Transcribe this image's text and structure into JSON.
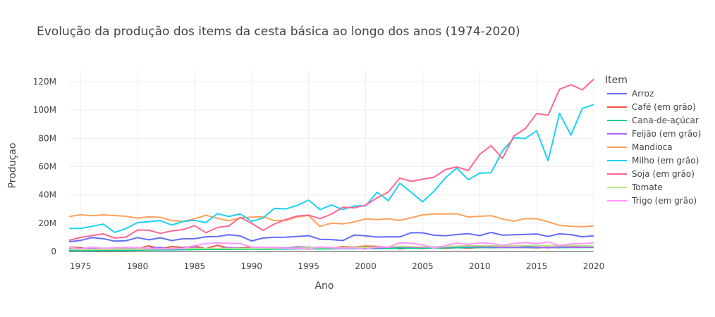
{
  "chart_data": {
    "type": "line",
    "title": "Evolução da produção dos items da cesta básica ao longo dos anos (1974-2020)",
    "xlabel": "Ano",
    "ylabel": "Produçao",
    "xlim": [
      1974,
      2020
    ],
    "ylim": [
      0,
      128000000
    ],
    "x_ticks": [
      1975,
      1980,
      1985,
      1990,
      1995,
      2000,
      2005,
      2010,
      2015,
      2020
    ],
    "y_ticks": [
      0,
      20000000,
      40000000,
      60000000,
      80000000,
      100000000,
      120000000
    ],
    "y_tick_labels": [
      "0",
      "20M",
      "40M",
      "60M",
      "80M",
      "100M",
      "120M"
    ],
    "grid": true,
    "legend_title": "Item",
    "legend_position": "right",
    "x": [
      1974,
      1975,
      1976,
      1977,
      1978,
      1979,
      1980,
      1981,
      1982,
      1983,
      1984,
      1985,
      1986,
      1987,
      1988,
      1989,
      1990,
      1991,
      1992,
      1993,
      1994,
      1995,
      1996,
      1997,
      1998,
      1999,
      2000,
      2001,
      2002,
      2003,
      2004,
      2005,
      2006,
      2007,
      2008,
      2009,
      2010,
      2011,
      2012,
      2013,
      2014,
      2015,
      2016,
      2017,
      2018,
      2019,
      2020
    ],
    "series": [
      {
        "name": "Arroz",
        "color": "#636efa",
        "values": [
          6800000,
          7800000,
          9800000,
          9000000,
          7300000,
          7600000,
          9800000,
          8200000,
          9700000,
          7700000,
          9000000,
          9000000,
          10400000,
          10600000,
          11800000,
          11000000,
          7400000,
          9500000,
          10000000,
          10100000,
          10600000,
          11200000,
          8600000,
          8400000,
          7700000,
          11600000,
          11100000,
          10200000,
          10400000,
          10300000,
          13300000,
          13200000,
          11500000,
          11100000,
          12000000,
          12600000,
          11200000,
          13500000,
          11500000,
          11800000,
          12100000,
          12400000,
          10600000,
          12500000,
          11900000,
          10400000,
          11100000
        ]
      },
      {
        "name": "Café (em grão)",
        "color": "#ef553b",
        "values": [
          3000000,
          2700000,
          1500000,
          1900000,
          2500000,
          2600000,
          2100000,
          4000000,
          1800000,
          3500000,
          2800000,
          3800000,
          2100000,
          4400000,
          2400000,
          2600000,
          2900000,
          3000000,
          2600000,
          2500000,
          2600000,
          1900000,
          2700000,
          2500000,
          3400000,
          3200000,
          3800000,
          3600000,
          2900000,
          1900000,
          2500000,
          2100000,
          2600000,
          2200000,
          2800000,
          2400000,
          2900000,
          2700000,
          3000000,
          2900000,
          2800000,
          2600000,
          3000000,
          2700000,
          3600000,
          3000000,
          3600000
        ]
      },
      {
        "name": "Cana-de-açúcar",
        "color": "#00cc96",
        "values": [
          800000,
          900000,
          700000,
          800000,
          900000,
          800000,
          1000000,
          1100000,
          1200000,
          1200000,
          1300000,
          1400000,
          1500000,
          1500000,
          1500000,
          1600000,
          1600000,
          1600000,
          1700000,
          1700000,
          1800000,
          1800000,
          1900000,
          1900000,
          2000000,
          2000000,
          2100000,
          2100000,
          2200000,
          2300000,
          2300000,
          2400000,
          2500000,
          2600000,
          2700000,
          2800000,
          2900000,
          2800000,
          2800000,
          2900000,
          2900000,
          2900000,
          2900000,
          2800000,
          2800000,
          2800000,
          2900000
        ]
      },
      {
        "name": "Feijão (em grão)",
        "color": "#ab63fa",
        "values": [
          2200000,
          2300000,
          1800000,
          2300000,
          2200000,
          2200000,
          2000000,
          2300000,
          2900000,
          1600000,
          2600000,
          2500000,
          2200000,
          2000000,
          2800000,
          2300000,
          2200000,
          2700000,
          2800000,
          2500000,
          3300000,
          2900000,
          2800000,
          2900000,
          2200000,
          2800000,
          3100000,
          2500000,
          3000000,
          3300000,
          3000000,
          3000000,
          3400000,
          3200000,
          3500000,
          3500000,
          3300000,
          3400000,
          2900000,
          2900000,
          3300000,
          3100000,
          2600000,
          3300000,
          3000000,
          3000000,
          3200000
        ]
      },
      {
        "name": "Mandioca",
        "color": "#ffa15a",
        "values": [
          24700000,
          26000000,
          25300000,
          25900000,
          25400000,
          24900000,
          23500000,
          24500000,
          24100000,
          21800000,
          21300000,
          23100000,
          25600000,
          23500000,
          21700000,
          23700000,
          24300000,
          24500000,
          21900000,
          21900000,
          24500000,
          25400000,
          17700000,
          20000000,
          19500000,
          20900000,
          23000000,
          22600000,
          23100000,
          21900000,
          23900000,
          25900000,
          26600000,
          26500000,
          26700000,
          24400000,
          24900000,
          25300000,
          23000000,
          21400000,
          23300000,
          23100000,
          21000000,
          18500000,
          17800000,
          17500000,
          18200000
        ]
      },
      {
        "name": "Milho (em grão)",
        "color": "#19d3f3",
        "values": [
          16300000,
          16300000,
          17800000,
          19300000,
          13500000,
          16300000,
          20400000,
          21100000,
          21800000,
          18700000,
          21200000,
          22000000,
          20500000,
          26800000,
          24700000,
          26600000,
          21300000,
          23700000,
          30500000,
          30100000,
          32500000,
          36300000,
          29600000,
          32900000,
          29600000,
          32200000,
          32300000,
          41900000,
          35900000,
          48300000,
          41800000,
          35100000,
          42700000,
          52100000,
          59000000,
          50700000,
          55400000,
          55700000,
          71100000,
          80300000,
          79900000,
          85300000,
          64200000,
          97700000,
          82300000,
          101100000,
          103900000
        ]
      },
      {
        "name": "Soja (em grão)",
        "color": "#ff6692",
        "values": [
          7900000,
          9900000,
          11200000,
          12500000,
          9500000,
          10200000,
          15200000,
          15000000,
          12800000,
          14600000,
          15500000,
          18300000,
          13300000,
          17000000,
          18000000,
          24100000,
          19900000,
          14900000,
          19400000,
          22600000,
          25100000,
          25700000,
          23200000,
          26400000,
          31300000,
          30900000,
          32800000,
          37900000,
          42100000,
          51900000,
          49600000,
          51100000,
          52500000,
          57900000,
          59800000,
          57300000,
          68700000,
          74800000,
          65800000,
          81700000,
          86800000,
          97500000,
          96300000,
          114700000,
          117900000,
          114300000,
          121800000
        ]
      },
      {
        "name": "Tomate",
        "color": "#b6e880",
        "values": [
          1500000,
          1400000,
          1400000,
          1500000,
          1600000,
          1700000,
          1600000,
          1700000,
          1800000,
          1900000,
          2000000,
          2100000,
          2200000,
          2100000,
          2100000,
          2100000,
          2100000,
          2200000,
          2300000,
          2300000,
          2400000,
          2500000,
          2600000,
          2700000,
          2700000,
          3000000,
          3000000,
          3100000,
          3300000,
          3700000,
          3500000,
          3400000,
          3300000,
          3400000,
          3800000,
          4100000,
          4100000,
          4100000,
          3900000,
          4200000,
          4300000,
          4200000,
          4200000,
          4200000,
          4100000,
          4100000,
          3800000
        ]
      },
      {
        "name": "Trigo (em grão)",
        "color": "#ff97ff",
        "values": [
          2900000,
          1800000,
          3200000,
          2100000,
          2700000,
          2900000,
          2700000,
          2200000,
          1800000,
          2200000,
          2000000,
          4300000,
          5600000,
          6100000,
          5800000,
          5600000,
          3100000,
          2900000,
          2800000,
          2200000,
          2100000,
          1500000,
          3300000,
          2500000,
          2300000,
          2500000,
          1700000,
          3400000,
          3100000,
          6100000,
          5800000,
          4700000,
          2500000,
          4100000,
          6000000,
          5000000,
          6200000,
          5700000,
          4400000,
          5700000,
          6300000,
          5500000,
          6800000,
          4300000,
          5400000,
          5600000,
          6200000
        ]
      }
    ]
  }
}
